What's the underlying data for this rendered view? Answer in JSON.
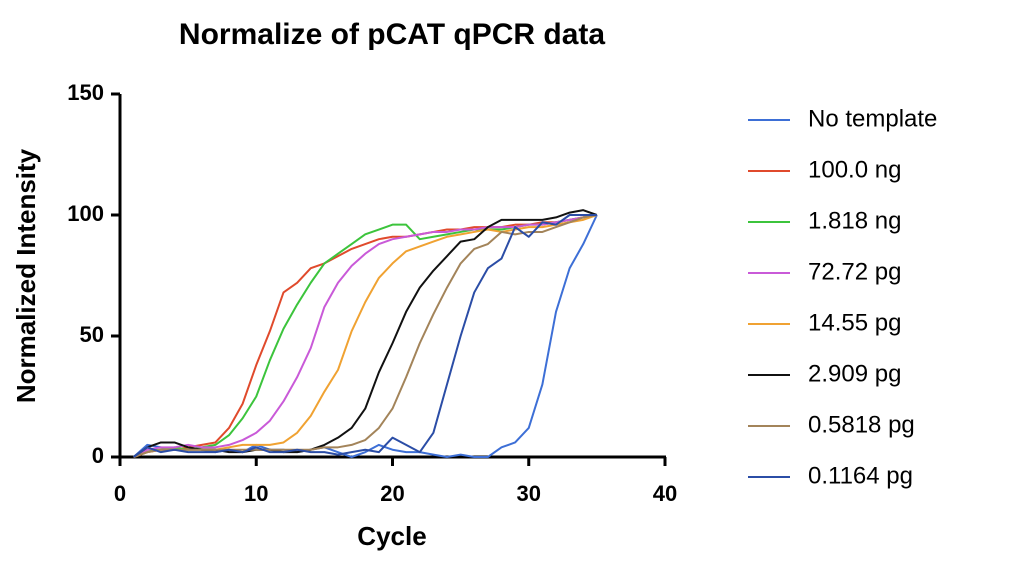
{
  "chart_data": {
    "type": "line",
    "title": "Normalize of pCAT qPCR data",
    "x_label": "Cycle",
    "y_label": "Normalized Intensity",
    "x": [
      1,
      2,
      3,
      4,
      5,
      6,
      7,
      8,
      9,
      10,
      11,
      12,
      13,
      14,
      15,
      16,
      17,
      18,
      19,
      20,
      21,
      22,
      23,
      24,
      25,
      26,
      27,
      28,
      29,
      30,
      31,
      32,
      33,
      34,
      35
    ],
    "xlim": [
      0,
      40
    ],
    "xticks": [
      0,
      10,
      20,
      30,
      40
    ],
    "ylim": [
      0,
      150
    ],
    "yticks": [
      0,
      50,
      100,
      150
    ],
    "legend": "right",
    "series": [
      {
        "name": "No template",
        "color": "#3d6fd6",
        "values": [
          0,
          5,
          4,
          3,
          3,
          3,
          2,
          3,
          2,
          5,
          3,
          3,
          2,
          3,
          4,
          2,
          0,
          2,
          5,
          3,
          2,
          2,
          1,
          0,
          1,
          0,
          0,
          4,
          6,
          12,
          30,
          60,
          78,
          88,
          100
        ]
      },
      {
        "name": "100.0 ng",
        "color": "#e04a2c",
        "values": [
          0,
          2,
          3,
          3,
          4,
          5,
          6,
          12,
          22,
          38,
          52,
          68,
          72,
          78,
          80,
          83,
          86,
          88,
          90,
          91,
          91,
          92,
          93,
          94,
          94,
          95,
          95,
          95,
          96,
          96,
          97,
          97,
          98,
          99,
          100
        ]
      },
      {
        "name": "1.818 ng",
        "color": "#3cc43c",
        "values": [
          0,
          3,
          3,
          4,
          3,
          4,
          5,
          9,
          16,
          25,
          40,
          53,
          63,
          72,
          80,
          84,
          88,
          92,
          94,
          96,
          96,
          90,
          91,
          92,
          93,
          94,
          94,
          94,
          95,
          96,
          96,
          97,
          98,
          99,
          100
        ]
      },
      {
        "name": "72.72 pg",
        "color": "#c95ad8",
        "values": [
          0,
          3,
          4,
          4,
          5,
          4,
          4,
          5,
          7,
          10,
          15,
          23,
          33,
          45,
          62,
          72,
          79,
          84,
          88,
          90,
          91,
          92,
          93,
          93,
          94,
          94,
          95,
          95,
          95,
          96,
          96,
          97,
          98,
          99,
          100
        ]
      },
      {
        "name": "14.55 pg",
        "color": "#f0a232",
        "values": [
          0,
          2,
          3,
          3,
          3,
          3,
          3,
          4,
          5,
          5,
          5,
          6,
          10,
          17,
          27,
          36,
          52,
          64,
          74,
          80,
          85,
          87,
          89,
          91,
          92,
          93,
          94,
          93,
          94,
          95,
          95,
          96,
          97,
          98,
          100
        ]
      },
      {
        "name": "2.909 pg",
        "color": "#111111",
        "values": [
          0,
          4,
          6,
          6,
          4,
          3,
          3,
          2,
          2,
          3,
          3,
          2,
          2,
          3,
          5,
          8,
          12,
          20,
          35,
          47,
          60,
          70,
          77,
          83,
          89,
          90,
          95,
          98,
          98,
          98,
          98,
          99,
          101,
          102,
          100
        ]
      },
      {
        "name": "0.5818 pg",
        "color": "#a3845a",
        "values": [
          0,
          2,
          3,
          3,
          3,
          3,
          3,
          3,
          3,
          3,
          3,
          3,
          3,
          3,
          4,
          4,
          5,
          7,
          12,
          20,
          33,
          47,
          59,
          70,
          80,
          86,
          88,
          93,
          92,
          93,
          93,
          95,
          97,
          99,
          100
        ]
      },
      {
        "name": "0.1164 pg",
        "color": "#2b4da6",
        "values": [
          0,
          4,
          2,
          3,
          2,
          2,
          2,
          3,
          2,
          4,
          2,
          2,
          3,
          2,
          2,
          1,
          2,
          3,
          2,
          8,
          5,
          2,
          10,
          30,
          50,
          68,
          78,
          82,
          95,
          91,
          97,
          96,
          100,
          100,
          100
        ]
      }
    ]
  }
}
